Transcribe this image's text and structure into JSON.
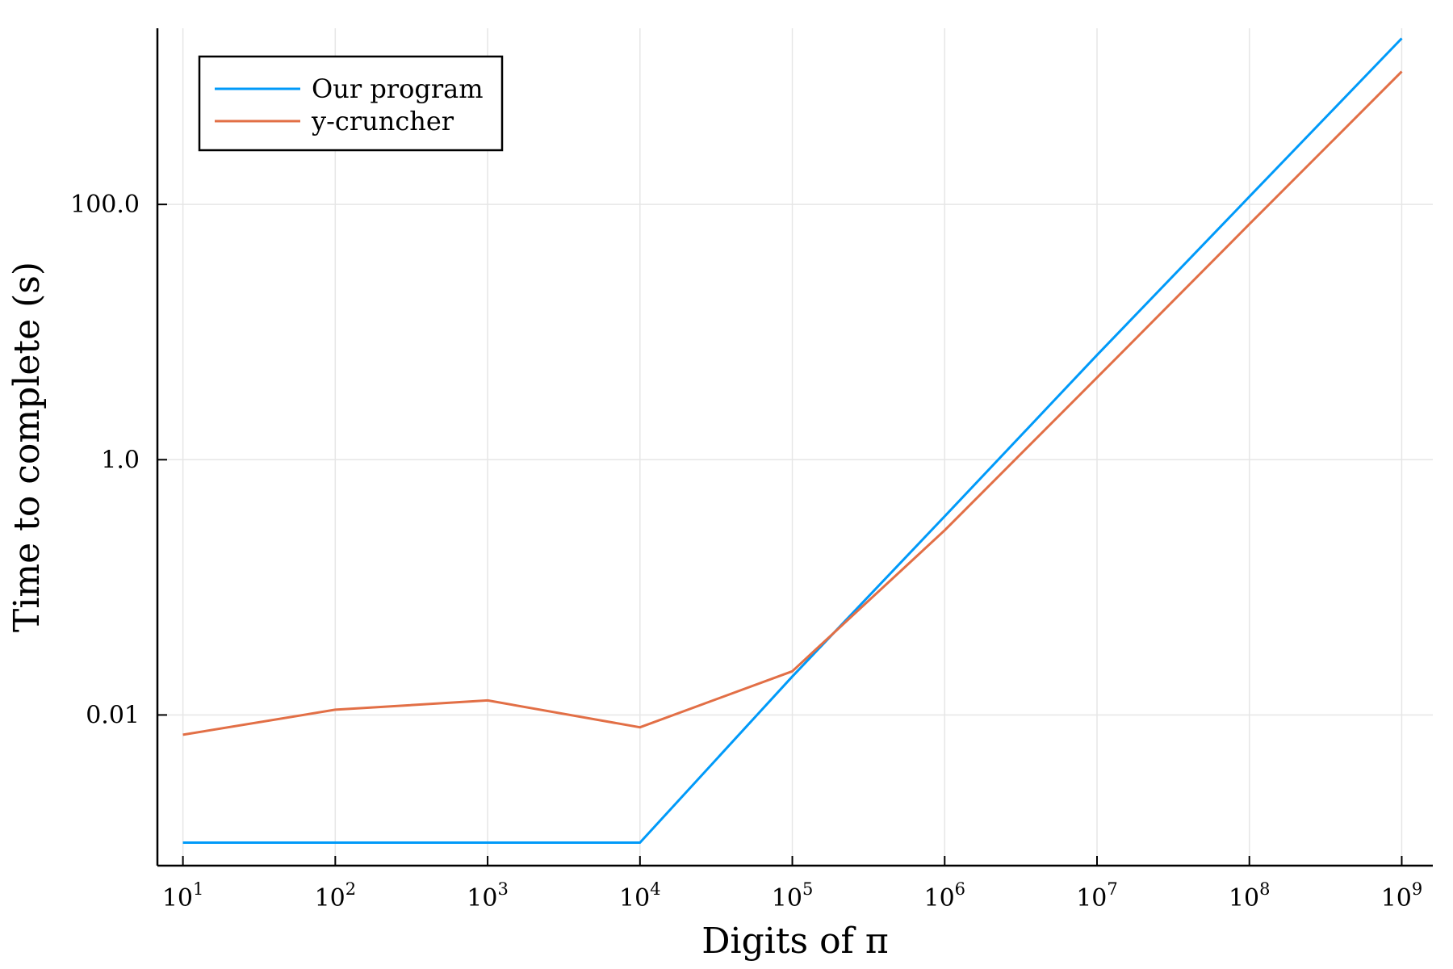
{
  "chart_data": {
    "type": "line",
    "title": "",
    "xlabel": "Digits of π",
    "ylabel": "Time to complete (s)",
    "x_scale": "log10",
    "y_scale": "log10",
    "x": [
      10,
      100,
      1000,
      10000,
      100000,
      1000000,
      10000000,
      100000000,
      1000000000
    ],
    "x_tick_labels": [
      {
        "base": "10",
        "exp": "1"
      },
      {
        "base": "10",
        "exp": "2"
      },
      {
        "base": "10",
        "exp": "3"
      },
      {
        "base": "10",
        "exp": "4"
      },
      {
        "base": "10",
        "exp": "5"
      },
      {
        "base": "10",
        "exp": "6"
      },
      {
        "base": "10",
        "exp": "7"
      },
      {
        "base": "10",
        "exp": "8"
      },
      {
        "base": "10",
        "exp": "9"
      }
    ],
    "y_ticks": [
      {
        "value": 0.01,
        "label": "0.01"
      },
      {
        "value": 1,
        "label": "1.0"
      },
      {
        "value": 100,
        "label": "100.0"
      }
    ],
    "xlim": [
      6.8,
      1600000000
    ],
    "ylim": [
      0.00066,
      2400
    ],
    "grid": true,
    "legend_position": "top-left",
    "series": [
      {
        "name": "Our program",
        "color": "#009af9",
        "values": [
          0.001,
          0.001,
          0.001,
          0.001,
          0.02,
          0.36,
          6.6,
          115,
          2000
        ]
      },
      {
        "name": "y-cruncher",
        "color": "#e26f46",
        "values": [
          0.007,
          0.011,
          0.013,
          0.008,
          0.022,
          0.28,
          4.4,
          70,
          1100
        ]
      }
    ]
  }
}
